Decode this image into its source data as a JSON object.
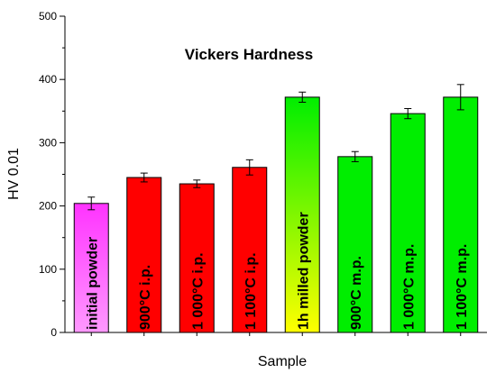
{
  "chart_data": {
    "type": "bar",
    "title": "Vickers Hardness",
    "xlabel": "Sample",
    "ylabel": "HV 0.01",
    "ylim": [
      0,
      500
    ],
    "yticks": [
      "0",
      "100",
      "200",
      "300",
      "400",
      "500"
    ],
    "grid": false,
    "legend": "none",
    "categories": [
      "initial powder",
      "900°C i.p.",
      "1 000°C i.p.",
      "1 100°C i.p.",
      "1h milled powder",
      "900°C m.p.",
      "1 000°C m.p.",
      "1 100°C m.p."
    ],
    "values": [
      204,
      245,
      235,
      261,
      372,
      278,
      346,
      372
    ],
    "errors": [
      10,
      7,
      6,
      12,
      8,
      8,
      8,
      20
    ],
    "colors": [
      {
        "top": "#ff33ff",
        "bottom": "#ff99ff"
      },
      {
        "top": "#ff0000",
        "bottom": "#ff0000"
      },
      {
        "top": "#ff0000",
        "bottom": "#ff0000"
      },
      {
        "top": "#ff0000",
        "bottom": "#ff0000"
      },
      {
        "top": "#00ee00",
        "bottom": "#ffff00"
      },
      {
        "top": "#00ee00",
        "bottom": "#00ee00"
      },
      {
        "top": "#00ee00",
        "bottom": "#00ee00"
      },
      {
        "top": "#00ee00",
        "bottom": "#00ee00"
      }
    ]
  }
}
